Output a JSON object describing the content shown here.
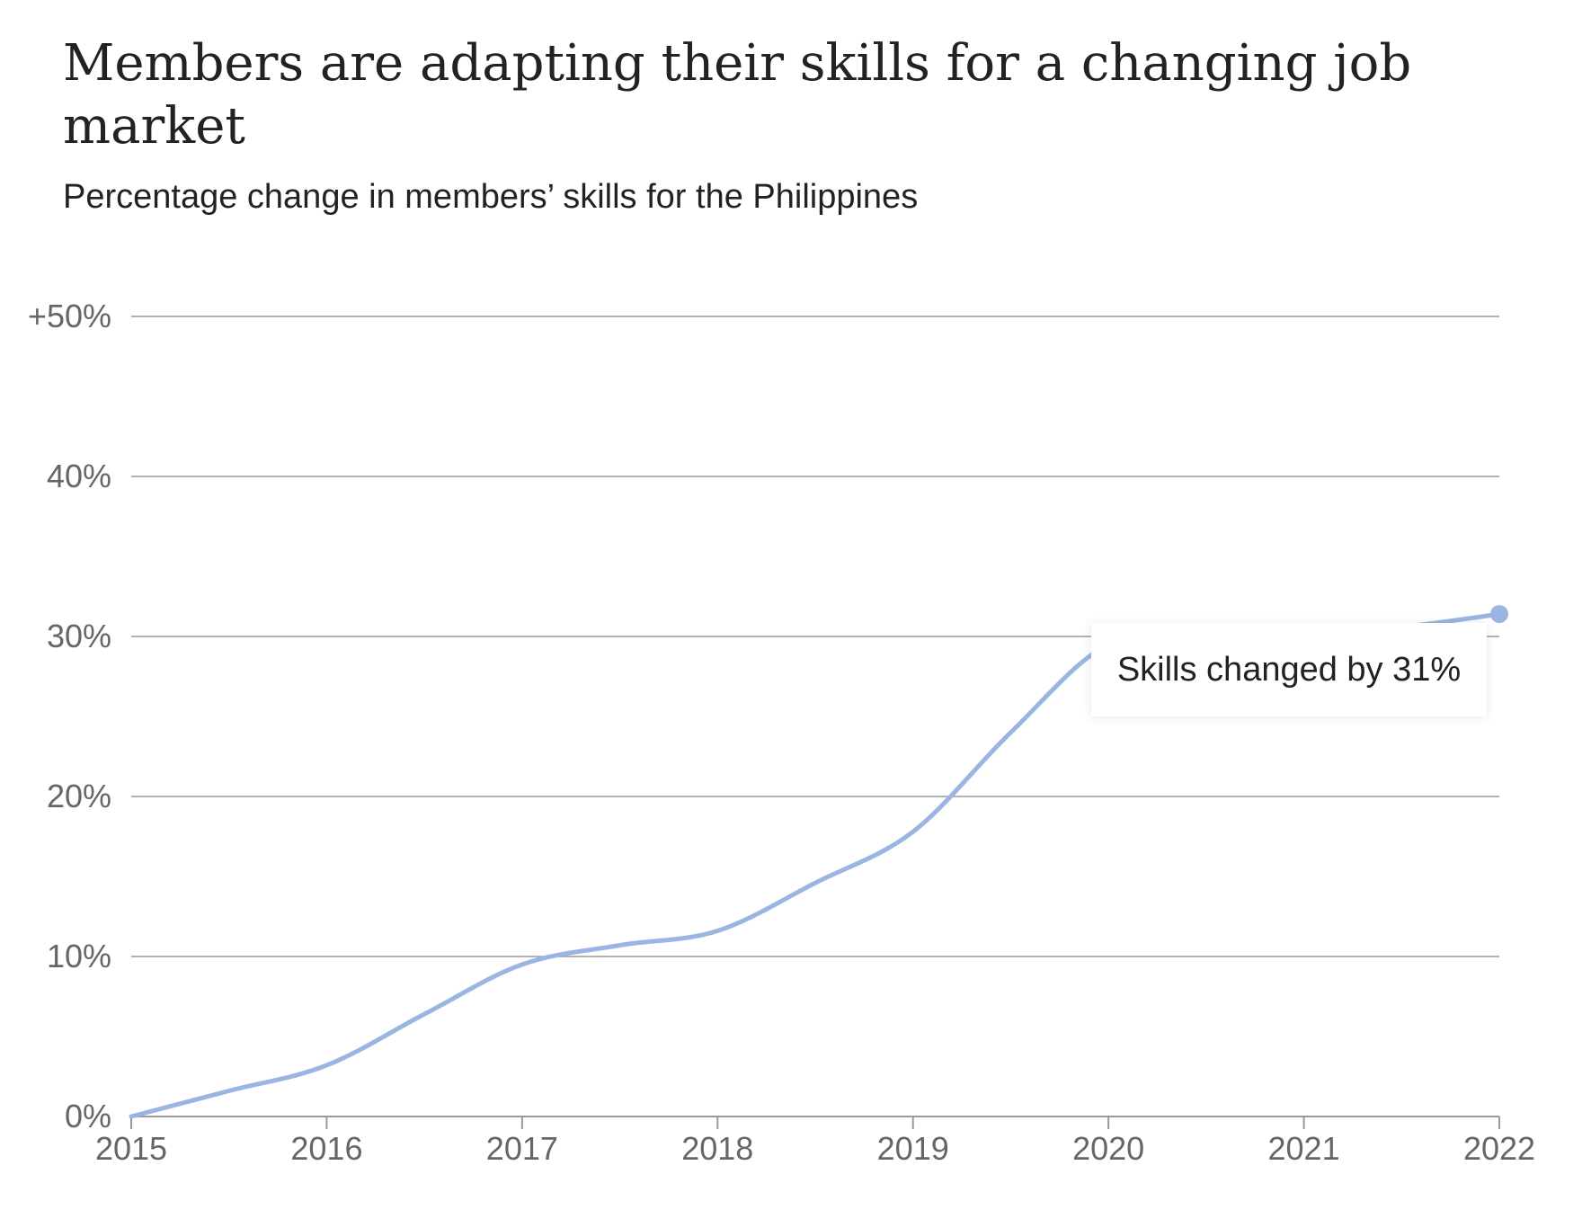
{
  "chart_data": {
    "type": "line",
    "title": "Members are adapting their skills for a changing job market",
    "subtitle": "Percentage change in members’ skills for the Philippines",
    "x": [
      2015,
      2015.5,
      2016,
      2016.5,
      2017,
      2017.5,
      2018,
      2018.5,
      2019,
      2019.5,
      2020,
      2020.5,
      2021,
      2021.5,
      2022
    ],
    "series": [
      {
        "values": [
          0,
          1.6,
          3.2,
          6.4,
          9.5,
          10.7,
          11.6,
          14.6,
          17.8,
          24.0,
          29.5,
          30.0,
          30.3,
          30.6,
          31.4
        ]
      }
    ],
    "x_ticks": [
      "2015",
      "2016",
      "2017",
      "2018",
      "2019",
      "2020",
      "2021",
      "2022"
    ],
    "y_ticks": [
      "0%",
      "10%",
      "20%",
      "30%",
      "40%",
      "+50%"
    ],
    "y_tick_values": [
      0,
      10,
      20,
      30,
      40,
      50
    ],
    "xlim": [
      2015,
      2022
    ],
    "ylim": [
      0,
      50
    ],
    "grid": true,
    "annotation": "Skills changed by 31%",
    "colors": {
      "line": "#9bb5e3",
      "grid": "#9a9a9a",
      "axis": "#9a9a9a"
    }
  }
}
